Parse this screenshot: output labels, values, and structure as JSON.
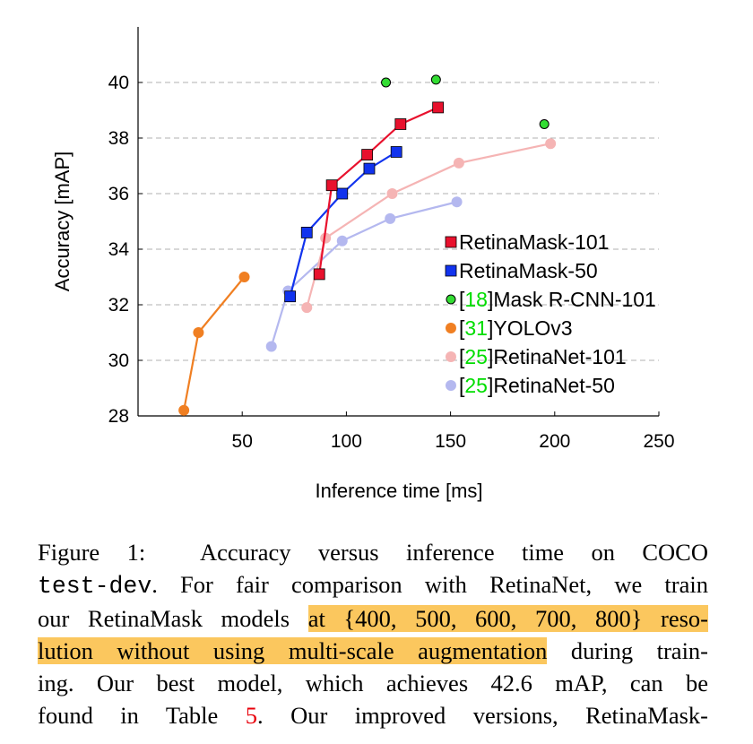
{
  "chart_data": {
    "type": "scatter",
    "xlabel": "Inference time [ms]",
    "ylabel": "Accuracy [mAP]",
    "xlim": [
      0,
      250
    ],
    "ylim": [
      28,
      42
    ],
    "xticks": [
      50,
      100,
      150,
      200,
      250
    ],
    "yticks": [
      28,
      30,
      32,
      34,
      36,
      38,
      40
    ],
    "grid": "horizontal-dashed",
    "legend_position": "right",
    "series": [
      {
        "name": "RetinaMask-101",
        "ref": "",
        "marker": "square",
        "connected": true,
        "color": "#e8112d",
        "points": [
          [
            87,
            33.1
          ],
          [
            93,
            36.3
          ],
          [
            110,
            37.4
          ],
          [
            126,
            38.5
          ],
          [
            144,
            39.1
          ]
        ]
      },
      {
        "name": "RetinaMask-50",
        "ref": "",
        "marker": "square",
        "connected": true,
        "color": "#1133ee",
        "points": [
          [
            73,
            32.3
          ],
          [
            81,
            34.6
          ],
          [
            98,
            36.0
          ],
          [
            111,
            36.9
          ],
          [
            124,
            37.5
          ]
        ]
      },
      {
        "name": "Mask R-CNN-101",
        "ref": "[18]",
        "marker": "circle",
        "connected": false,
        "color": "#33dd33",
        "points": [
          [
            119,
            40.0
          ],
          [
            143,
            40.1
          ],
          [
            195,
            38.5
          ]
        ]
      },
      {
        "name": "YOLOv3",
        "ref": "[31]",
        "marker": "circle",
        "connected": true,
        "color": "#f07f22",
        "points": [
          [
            22,
            28.2
          ],
          [
            29,
            31.0
          ],
          [
            51,
            33.0
          ]
        ]
      },
      {
        "name": "RetinaNet-101",
        "ref": "[25]",
        "marker": "circle",
        "connected": true,
        "color": "#f5b4b4",
        "points": [
          [
            81,
            31.9
          ],
          [
            90,
            34.4
          ],
          [
            122,
            36.0
          ],
          [
            154,
            37.1
          ],
          [
            198,
            37.8
          ]
        ]
      },
      {
        "name": "RetinaNet-50",
        "ref": "[25]",
        "marker": "circle",
        "connected": true,
        "color": "#b4b8ef",
        "points": [
          [
            64,
            30.5
          ],
          [
            72,
            32.5
          ],
          [
            98,
            34.3
          ],
          [
            121,
            35.1
          ],
          [
            153,
            35.7
          ]
        ]
      }
    ]
  },
  "caption": {
    "label": "Figure 1:",
    "l1": "Accuracy versus inference time on COCO",
    "l2_code": "test-dev",
    "l2": ". For fair comparison with RetinaNet, we train",
    "l3_pre": "our RetinaMask models ",
    "l3_hl": "at {400, 500, 600, 700, 800} reso-",
    "l4_hl": "lution without using multi-scale augmentation",
    "l4_post": " during train-",
    "l5": "ing.  Our best model, which achieves 42.6 mAP, can be",
    "l6_pre": "found in Table ",
    "l6_ref": "5",
    "l6_post": ".  Our improved versions, RetinaMask-"
  }
}
